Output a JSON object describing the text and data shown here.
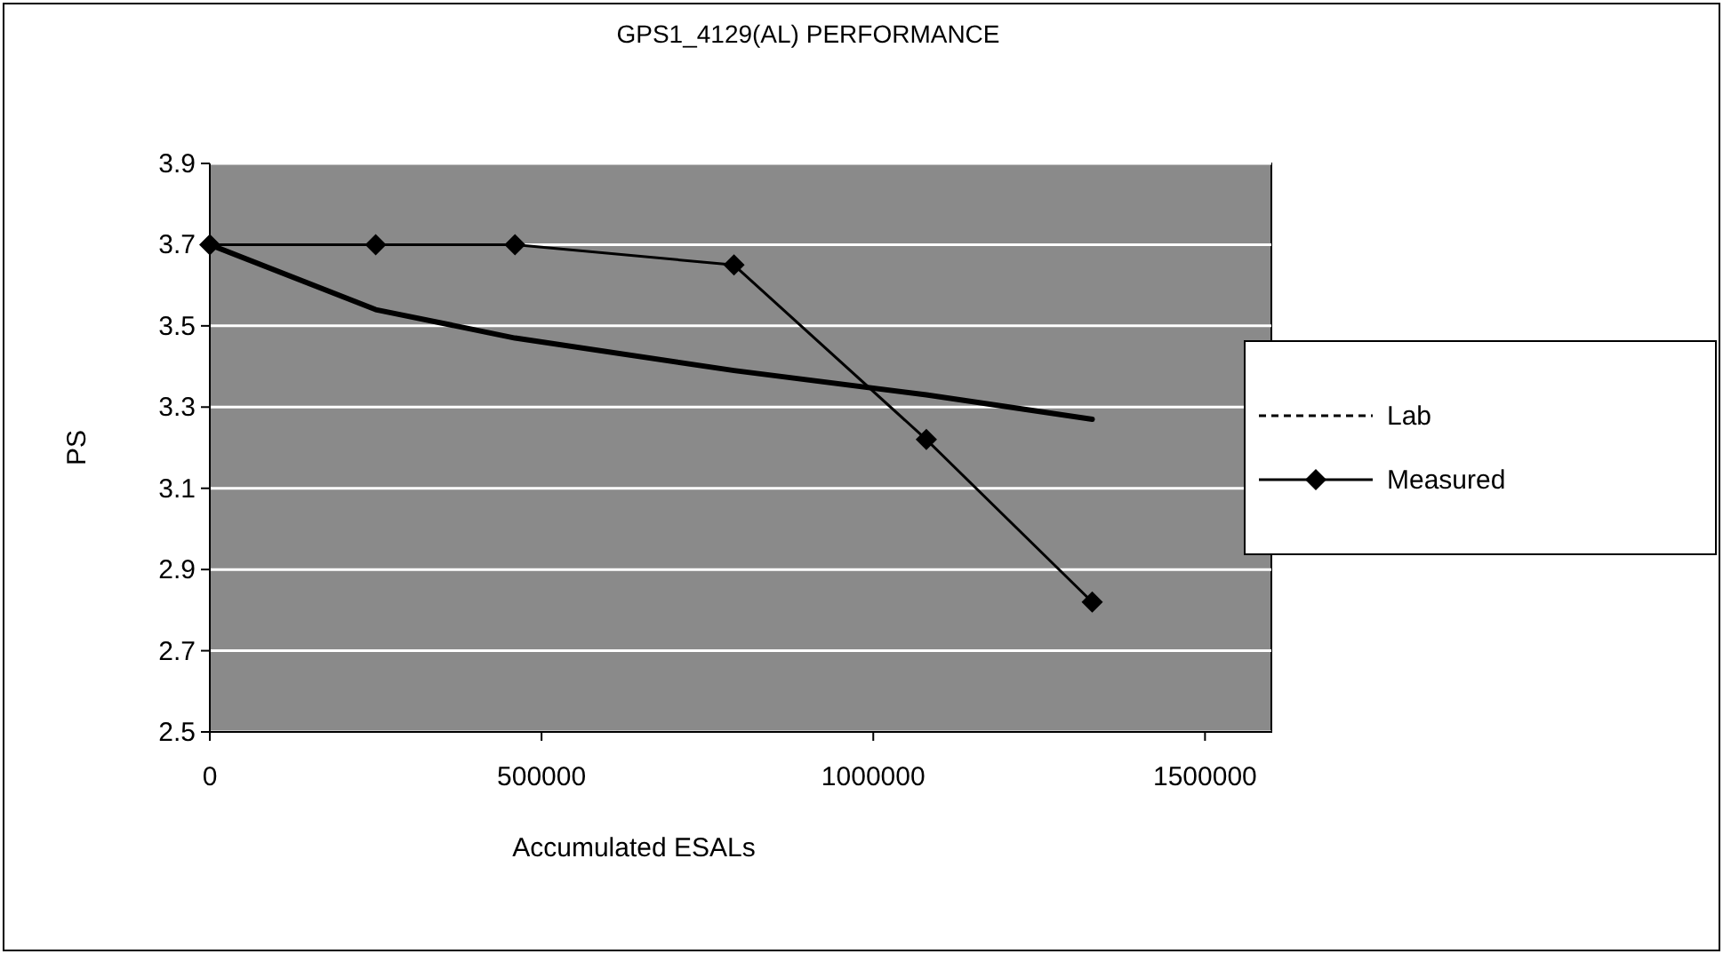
{
  "chart_data": {
    "type": "line",
    "title": "GPS1_4129(AL) PERFORMANCE",
    "xlabel": "Accumulated ESALs",
    "ylabel": "PS",
    "xlim": [
      0,
      1600000
    ],
    "xticks": [
      0,
      500000,
      1000000,
      1500000
    ],
    "ylim": [
      2.5,
      3.9
    ],
    "yticks": [
      2.5,
      2.7,
      2.9,
      3.1,
      3.3,
      3.5,
      3.7,
      3.9
    ],
    "grid": "y",
    "legend": "right",
    "series": [
      {
        "color": "#000000",
        "line_style": "solid",
        "marker": "none",
        "x": [
          0,
          250000,
          460000,
          790000,
          1080000,
          1330000
        ],
        "values": [
          3.7,
          3.54,
          3.47,
          3.39,
          3.33,
          3.27
        ]
      },
      {
        "name": "Lab",
        "color": "#000000",
        "line_style": "dashed",
        "marker": "none"
      },
      {
        "name": "Measured",
        "color": "#000000",
        "line_style": "solid",
        "marker": "diamond",
        "x": [
          0,
          250000,
          460000,
          790000,
          1080000,
          1330000
        ],
        "values": [
          3.7,
          3.7,
          3.7,
          3.65,
          3.22,
          2.82
        ]
      }
    ]
  }
}
